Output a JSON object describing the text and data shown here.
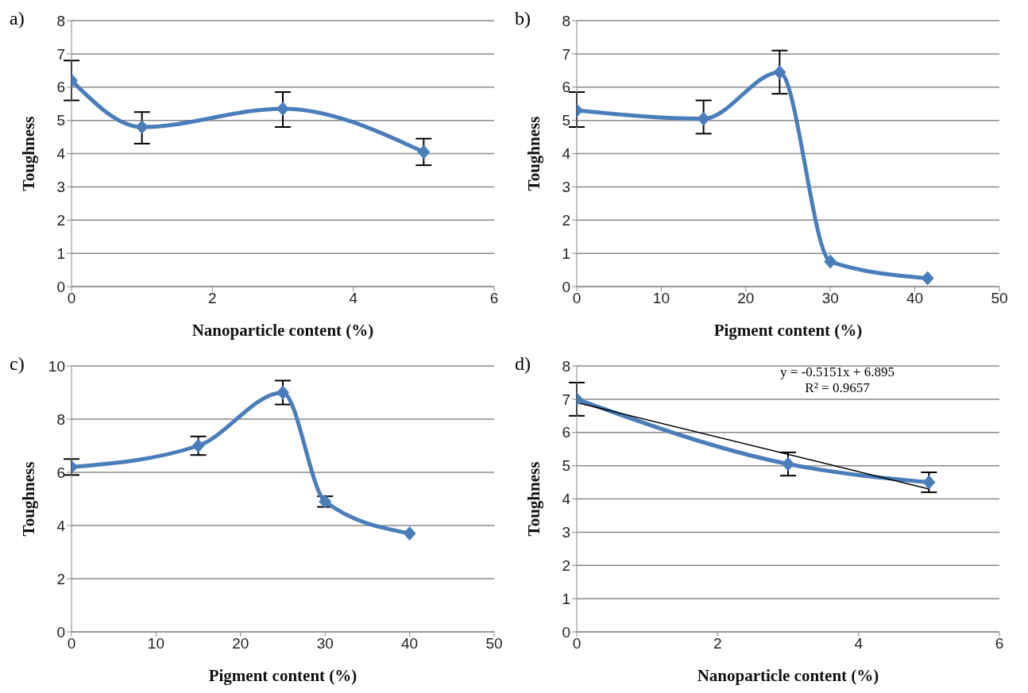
{
  "chart_data": [
    {
      "type": "line",
      "title": "a)",
      "xlabel": "Nanoparticle content (%)",
      "ylabel": "Toughness",
      "x": [
        0,
        1,
        3,
        5
      ],
      "xlim": [
        0,
        6
      ],
      "xticks": [
        0,
        2,
        4,
        6
      ],
      "ylim": [
        0,
        8
      ],
      "yticks": [
        0,
        1,
        2,
        3,
        4,
        5,
        6,
        7,
        8
      ],
      "grid": "y",
      "marker": "diamond",
      "line_style": "solid",
      "series": [
        {
          "color": "#4a7ebb",
          "values": [
            6.2,
            4.8,
            5.35,
            4.05
          ],
          "errors": [
            [
              5.6,
              6.8
            ],
            [
              4.3,
              5.25
            ],
            [
              4.8,
              5.85
            ],
            [
              3.65,
              4.45
            ]
          ]
        }
      ]
    },
    {
      "type": "line",
      "title": "b)",
      "xlabel": "Pigment content (%)",
      "ylabel": "Toughness",
      "x": [
        0,
        15,
        24,
        30,
        41.5
      ],
      "xlim": [
        0,
        50
      ],
      "xticks": [
        0,
        10,
        20,
        30,
        40,
        50
      ],
      "ylim": [
        0,
        8
      ],
      "yticks": [
        0,
        1,
        2,
        3,
        4,
        5,
        6,
        7,
        8
      ],
      "grid": "y",
      "marker": "diamond",
      "line_style": "solid",
      "series": [
        {
          "color": "#4a7ebb",
          "values": [
            5.3,
            5.05,
            6.45,
            0.75,
            0.25
          ],
          "errors": [
            [
              4.8,
              5.85
            ],
            [
              4.6,
              5.6
            ],
            [
              5.8,
              7.1
            ],
            null,
            null
          ]
        }
      ]
    },
    {
      "type": "line",
      "title": "c)",
      "xlabel": "Pigment content (%)",
      "ylabel": "Toughness",
      "x": [
        0,
        15,
        25,
        30,
        40
      ],
      "xlim": [
        0,
        50
      ],
      "xticks": [
        0,
        10,
        20,
        30,
        40,
        50
      ],
      "ylim": [
        0,
        10
      ],
      "yticks": [
        0,
        2,
        4,
        6,
        8,
        10
      ],
      "grid": "y",
      "marker": "diamond",
      "line_style": "solid",
      "series": [
        {
          "color": "#4a7ebb",
          "values": [
            6.2,
            7.0,
            9.0,
            4.9,
            3.7
          ],
          "errors": [
            [
              5.9,
              6.5
            ],
            [
              6.65,
              7.35
            ],
            [
              8.55,
              9.45
            ],
            [
              4.7,
              5.1
            ],
            null
          ]
        }
      ]
    },
    {
      "type": "line",
      "title": "d)",
      "xlabel": "Nanoparticle content (%)",
      "ylabel": "Toughness",
      "x": [
        0,
        3,
        5
      ],
      "xlim": [
        0,
        6
      ],
      "xticks": [
        0,
        2,
        4,
        6
      ],
      "ylim": [
        0,
        8
      ],
      "yticks": [
        0,
        1,
        2,
        3,
        4,
        5,
        6,
        7,
        8
      ],
      "grid": "y",
      "marker": "diamond",
      "line_style": "solid",
      "annotations": [
        "y = -0.5151x + 6.895",
        "R² = 0.9657"
      ],
      "series": [
        {
          "color": "#4a7ebb",
          "values": [
            7.0,
            5.05,
            4.5
          ],
          "errors": [
            [
              6.5,
              7.5
            ],
            [
              4.7,
              5.4
            ],
            [
              4.2,
              4.8
            ]
          ]
        },
        {
          "type": "line",
          "color": "#000000",
          "x": [
            0,
            5
          ],
          "values": [
            6.9,
            4.3
          ],
          "marker": "none"
        }
      ]
    }
  ]
}
